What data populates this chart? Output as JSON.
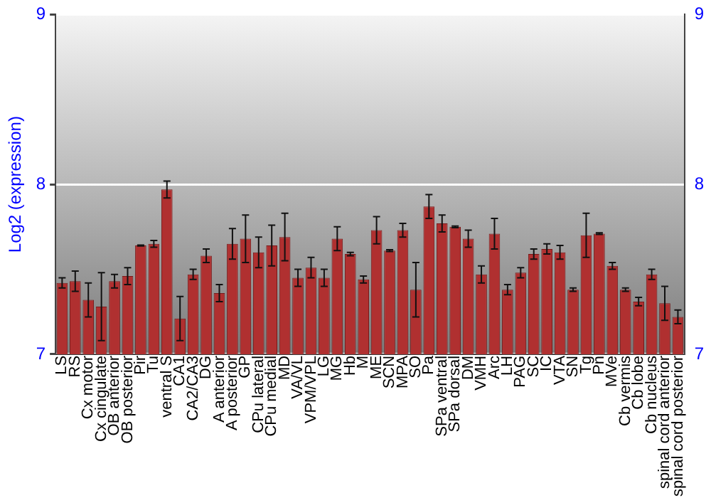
{
  "chart_data": {
    "type": "bar",
    "ylabel": "Log2 (expression)",
    "categories": [
      "LS",
      "RS",
      "Cx motor",
      "Cx cingulate",
      "OB anterior",
      "OB posterior",
      "Pir",
      "Tu",
      "ventral S",
      "CA1",
      "CA2/CA3",
      "DG",
      "A anterior",
      "A posterior",
      "GP",
      "CPu lateral",
      "CPu medial",
      "MD",
      "VA/VL",
      "VPM/VPL",
      "LG",
      "MG",
      "Hb",
      "M",
      "ME",
      "SCN",
      "MPA",
      "SO",
      "Pa",
      "SPa ventral",
      "SPa dorsal",
      "DM",
      "VMH",
      "Arc",
      "LH",
      "PAG",
      "SC",
      "IC",
      "VTA",
      "SN",
      "Tg",
      "Pn",
      "MVe",
      "Cb vermis",
      "Cb lobe",
      "Cb nucleus",
      "spinal cord anterior",
      "spinal cord posterior"
    ],
    "series": [
      {
        "color": "#b03030",
        "values": [
          7.42,
          7.43,
          7.32,
          7.28,
          7.43,
          7.46,
          7.64,
          7.65,
          7.97,
          7.21,
          7.47,
          7.58,
          7.36,
          7.65,
          7.68,
          7.6,
          7.64,
          7.69,
          7.45,
          7.51,
          7.45,
          7.68,
          7.59,
          7.44,
          7.73,
          7.61,
          7.73,
          7.38,
          7.87,
          7.77,
          7.75,
          7.68,
          7.47,
          7.71,
          7.38,
          7.48,
          7.59,
          7.62,
          7.6,
          7.38,
          7.7,
          7.71,
          7.52,
          7.38,
          7.31,
          7.47,
          7.3,
          7.22
        ],
        "errors": [
          0.03,
          0.06,
          0.1,
          0.2,
          0.04,
          0.05,
          0.003,
          0.02,
          0.05,
          0.13,
          0.03,
          0.04,
          0.05,
          0.09,
          0.14,
          0.09,
          0.12,
          0.14,
          0.05,
          0.06,
          0.05,
          0.07,
          0.01,
          0.02,
          0.08,
          0.005,
          0.04,
          0.16,
          0.07,
          0.05,
          0.005,
          0.05,
          0.05,
          0.09,
          0.03,
          0.03,
          0.03,
          0.03,
          0.04,
          0.01,
          0.13,
          0.005,
          0.02,
          0.01,
          0.025,
          0.03,
          0.1,
          0.04
        ]
      }
    ],
    "ylim": [
      7,
      9
    ],
    "yticks": [
      7,
      8,
      9
    ],
    "y2lim": [
      7,
      9
    ],
    "y2ticks": [
      7,
      8,
      9
    ],
    "grid": "y"
  }
}
